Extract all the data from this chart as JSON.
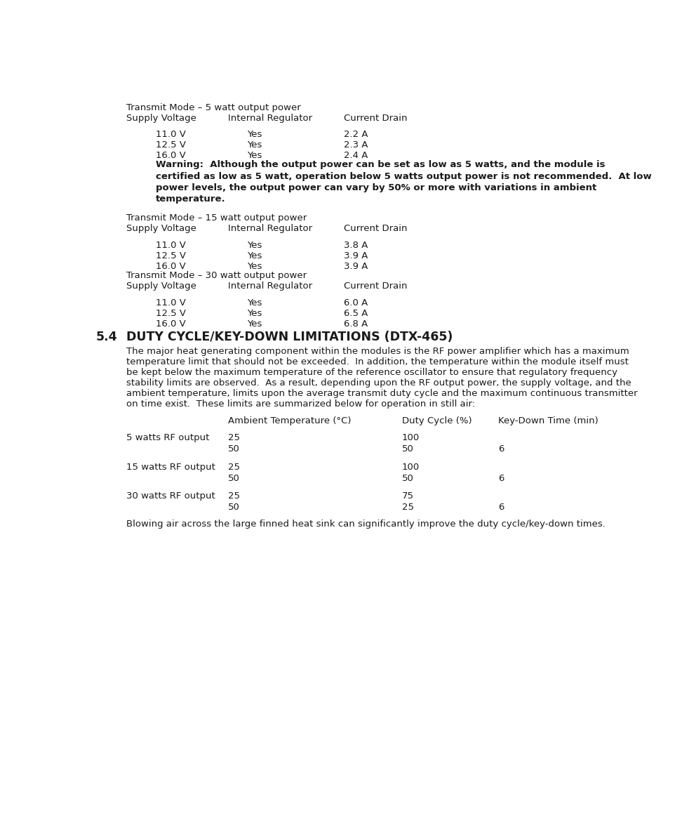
{
  "bg_color": "#ffffff",
  "text_color": "#1a1a1a",
  "page_width": 9.72,
  "page_height": 11.58,
  "section_number": "5.4",
  "section_title": "DUTY CYCLE/KEY-DOWN LIMITATIONS (DTX-465)",
  "transmit_tables": [
    {
      "title": "Transmit Mode – 5 watt output power",
      "header": [
        "Supply Voltage",
        "Internal Regulator",
        "Current Drain"
      ],
      "rows": [
        [
          "11.0 V",
          "Yes",
          "2.2 A"
        ],
        [
          "12.5 V",
          "Yes",
          "2.3 A"
        ],
        [
          "16.0 V",
          "Yes",
          "2.4 A"
        ]
      ]
    },
    {
      "title": "Transmit Mode – 15 watt output power",
      "header": [
        "Supply Voltage",
        "Internal Regulator",
        "Current Drain"
      ],
      "rows": [
        [
          "11.0 V",
          "Yes",
          "3.8 A"
        ],
        [
          "12.5 V",
          "Yes",
          "3.9 A"
        ],
        [
          "16.0 V",
          "Yes",
          "3.9 A"
        ]
      ]
    },
    {
      "title": "Transmit Mode – 30 watt output power",
      "header": [
        "Supply Voltage",
        "Internal Regulator",
        "Current Drain"
      ],
      "rows": [
        [
          "11.0 V",
          "Yes",
          "6.0 A"
        ],
        [
          "12.5 V",
          "Yes",
          "6.5 A"
        ],
        [
          "16.0 V",
          "Yes",
          "6.8 A"
        ]
      ]
    }
  ],
  "warn_lines": [
    "Warning:  Although the output power can be set as low as 5 watts, and the module is",
    "certified as low as 5 watt, operation below 5 watts output power is not recommended.  At low",
    "power levels, the output power can vary by 50% or more with variations in ambient",
    "temperature."
  ],
  "body_lines": [
    "The major heat generating component within the modules is the RF power amplifier which has a maximum",
    "temperature limit that should not be exceeded.  In addition, the temperature within the module itself must",
    "be kept below the maximum temperature of the reference oscillator to ensure that regulatory frequency",
    "stability limits are observed.  As a result, depending upon the RF output power, the supply voltage, and the",
    "ambient temperature, limits upon the average transmit duty cycle and the maximum continuous transmitter",
    "on time exist.  These limits are summarized below for operation in still air:"
  ],
  "duty_table_header": [
    "Ambient Temperature (°C)",
    "Duty Cycle (%)",
    "Key-Down Time (min)"
  ],
  "duty_table_rows": [
    [
      "5 watts RF output",
      "25",
      "100",
      ""
    ],
    [
      "",
      "50",
      "50",
      "6"
    ],
    [
      "15 watts RF output",
      "25",
      "100",
      ""
    ],
    [
      "",
      "50",
      "50",
      "6"
    ],
    [
      "30 watts RF output",
      "25",
      "75",
      ""
    ],
    [
      "",
      "50",
      "25",
      "6"
    ]
  ],
  "footer_text": "Blowing air across the large finned heat sink can significantly improve the duty cycle/key-down times.",
  "col_sv": 0.75,
  "col_ir": 2.62,
  "col_cd": 4.75,
  "col_sv_data": 1.3,
  "col_ir_data": 2.97,
  "col_cd_data": 4.75,
  "duty_col_label": 0.75,
  "duty_col_temp": 2.62,
  "duty_col_duty": 5.82,
  "duty_col_keydown": 7.6
}
